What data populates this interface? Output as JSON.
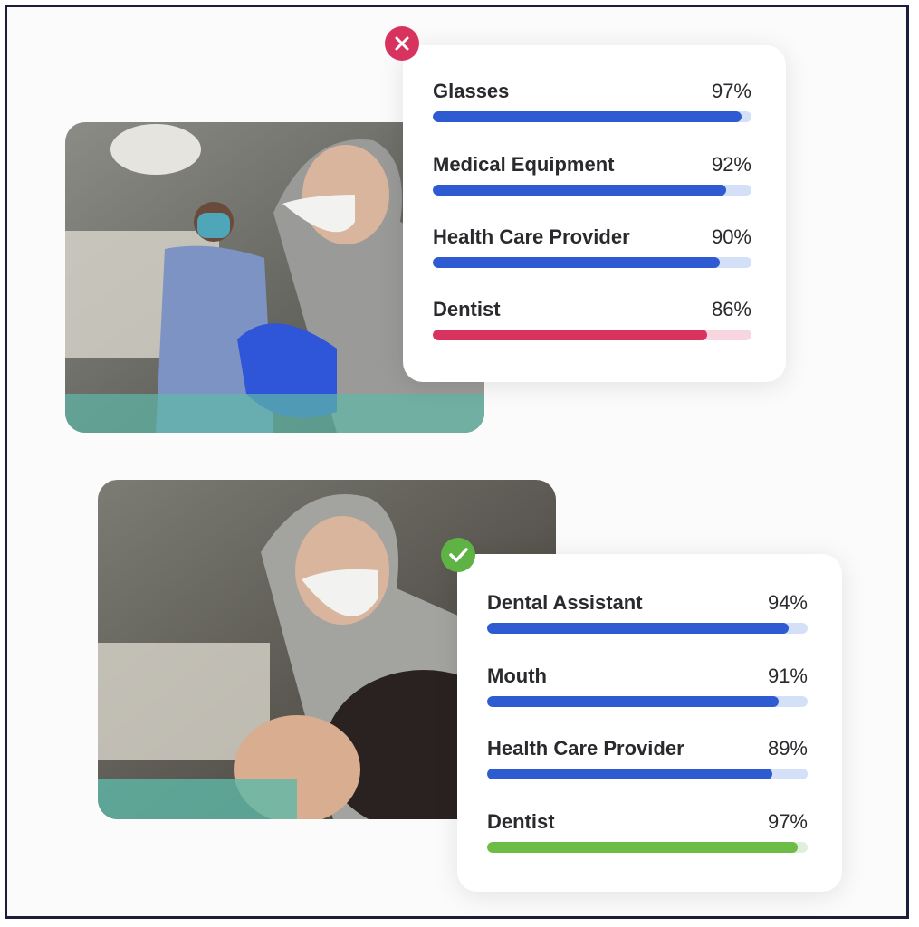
{
  "panels": [
    {
      "items": [
        {
          "label": "Glasses",
          "value": 97,
          "value_label": "97%",
          "color": "#2e5bd2",
          "track": "#d4dff8"
        },
        {
          "label": "Medical Equipment",
          "value": 92,
          "value_label": "92%",
          "color": "#2e5bd2",
          "track": "#d4dff8"
        },
        {
          "label": "Health Care Provider",
          "value": 90,
          "value_label": "90%",
          "color": "#2e5bd2",
          "track": "#d4dff8"
        },
        {
          "label": "Dentist",
          "value": 86,
          "value_label": "86%",
          "color": "#d8325f",
          "track": "#f8d6df"
        }
      ]
    },
    {
      "items": [
        {
          "label": "Dental Assistant",
          "value": 94,
          "value_label": "94%",
          "color": "#2e5bd2",
          "track": "#d4dff8"
        },
        {
          "label": "Mouth",
          "value": 91,
          "value_label": "91%",
          "color": "#2e5bd2",
          "track": "#d4dff8"
        },
        {
          "label": "Health Care Provider",
          "value": 89,
          "value_label": "89%",
          "color": "#2e5bd2",
          "track": "#d4dff8"
        },
        {
          "label": "Dentist",
          "value": 97,
          "value_label": "97%",
          "color": "#6cbd46",
          "track": "#e1eed9"
        }
      ]
    }
  ]
}
